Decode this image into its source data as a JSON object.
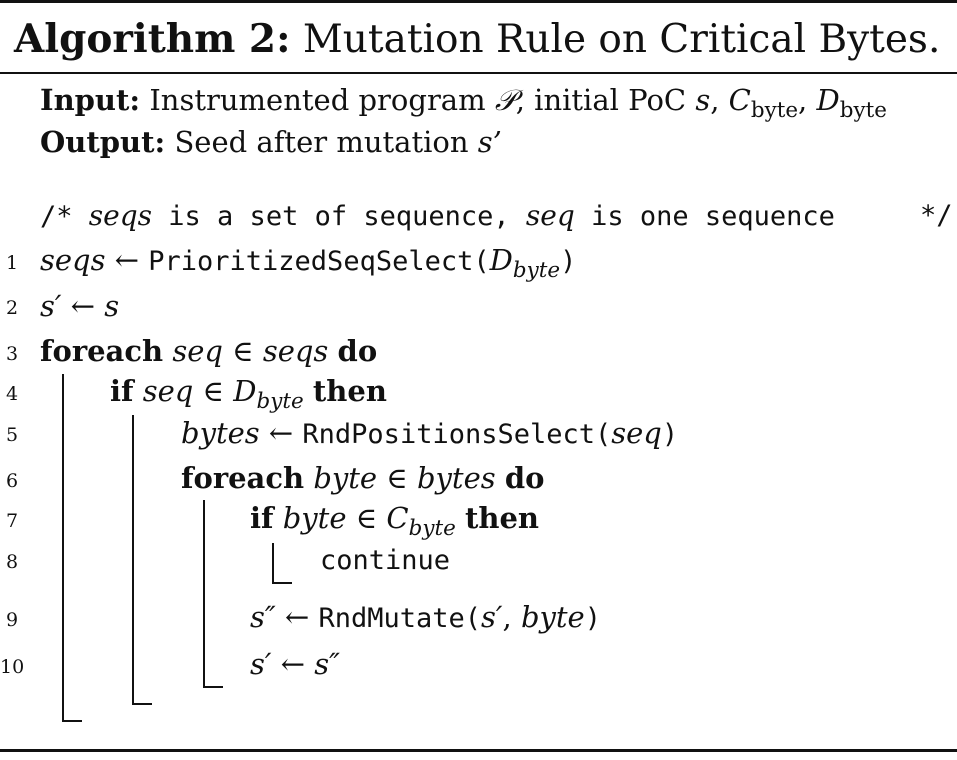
{
  "header": {
    "label": "Algorithm 2:",
    "title": "Mutation Rule on Critical Bytes."
  },
  "io": {
    "input_label": "Input:",
    "input_text": "Instrumented program",
    "input_program_symbol": "𝒫",
    "input_rest": ", initial PoC",
    "input_s": "s",
    "input_c": "C",
    "input_c_sub": "byte",
    "input_d": "D",
    "input_d_sub": "byte",
    "output_label": "Output:",
    "output_text": "Seed after mutation",
    "output_var": "s’"
  },
  "comment": {
    "open": "/*",
    "var1": "seqs",
    "mid": "is a set of sequence,",
    "var2": "seq",
    "rest": "is one sequence",
    "close": "*/"
  },
  "lines": [
    {
      "num": "1",
      "lhs": "seqs",
      "arrow": "←",
      "fn": "PrioritizedSeqSelect(",
      "arg": "D",
      "arg_sub": "byte",
      "close": ")"
    },
    {
      "num": "2",
      "lhs": "s′",
      "arrow": "←",
      "rhs": "s"
    },
    {
      "num": "3",
      "kw1": "foreach",
      "var": "seq",
      "op": "∈",
      "set": "seqs",
      "kw2": "do"
    },
    {
      "num": "4",
      "kw1": "if",
      "var": "seq",
      "op": "∈",
      "set": "D",
      "set_sub": "byte",
      "kw2": "then"
    },
    {
      "num": "5",
      "lhs": "bytes",
      "arrow": "←",
      "fn": "RndPositionsSelect(",
      "arg": "seq",
      "close": ")"
    },
    {
      "num": "6",
      "kw1": "foreach",
      "var": "byte",
      "op": "∈",
      "set": "bytes",
      "kw2": "do"
    },
    {
      "num": "7",
      "kw1": "if",
      "var": "byte",
      "op": "∈",
      "set": "C",
      "set_sub": "byte",
      "kw2": "then"
    },
    {
      "num": "8",
      "stmt": "continue"
    },
    {
      "num": "9",
      "lhs": "s″",
      "arrow": "←",
      "fn": "RndMutate(",
      "arg": "s′",
      "sep": ",",
      "arg2": "byte",
      "close": ")"
    },
    {
      "num": "10",
      "lhs": "s′",
      "arrow": "←",
      "rhs": "s″"
    }
  ]
}
